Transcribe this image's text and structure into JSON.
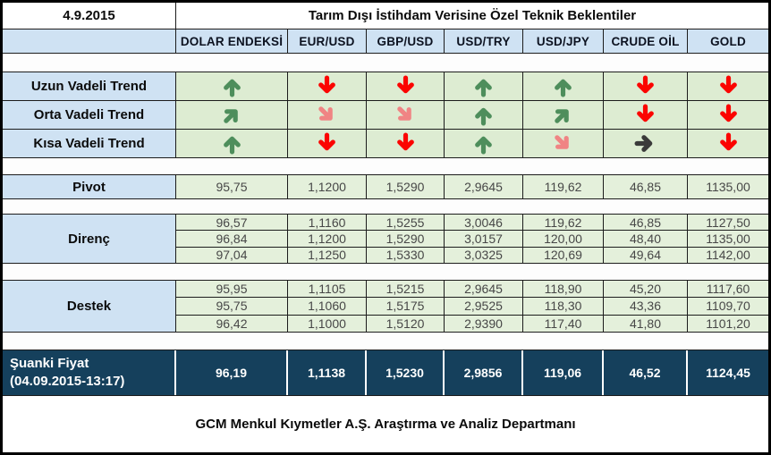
{
  "chart_data": {
    "type": "table",
    "date": "4.9.2015",
    "title": "Tarım Dışı İstihdam Verisine Özel Teknik Beklentiler",
    "footer": "GCM Menkul Kıymetler A.Ş. Araştırma ve Analiz Departmanı",
    "columns": [
      "DOLAR ENDEKSİ",
      "EUR/USD",
      "GBP/USD",
      "USD/TRY",
      "USD/JPY",
      "CRUDE OİL",
      "GOLD"
    ],
    "trend_rows": [
      {
        "label": "Uzun Vadeli Trend",
        "arrows": [
          {
            "dir": "up",
            "tone": "green"
          },
          {
            "dir": "down",
            "tone": "red"
          },
          {
            "dir": "down",
            "tone": "red"
          },
          {
            "dir": "up",
            "tone": "green"
          },
          {
            "dir": "up",
            "tone": "green"
          },
          {
            "dir": "down",
            "tone": "red"
          },
          {
            "dir": "down",
            "tone": "red"
          }
        ]
      },
      {
        "label": "Orta Vadeli Trend",
        "arrows": [
          {
            "dir": "up-right",
            "tone": "green"
          },
          {
            "dir": "down-right",
            "tone": "light-red"
          },
          {
            "dir": "down-right",
            "tone": "light-red"
          },
          {
            "dir": "up",
            "tone": "green"
          },
          {
            "dir": "up-right",
            "tone": "green"
          },
          {
            "dir": "down",
            "tone": "red"
          },
          {
            "dir": "down",
            "tone": "red"
          }
        ]
      },
      {
        "label": "Kısa Vadeli Trend",
        "arrows": [
          {
            "dir": "up",
            "tone": "green"
          },
          {
            "dir": "down",
            "tone": "red"
          },
          {
            "dir": "down",
            "tone": "red"
          },
          {
            "dir": "up",
            "tone": "green"
          },
          {
            "dir": "down-right",
            "tone": "light-red"
          },
          {
            "dir": "right",
            "tone": "dark"
          },
          {
            "dir": "down",
            "tone": "red"
          }
        ]
      }
    ],
    "pivot": {
      "label": "Pivot",
      "values": [
        "95,75",
        "1,1200",
        "1,5290",
        "2,9645",
        "119,62",
        "46,85",
        "1135,00"
      ]
    },
    "resistance": {
      "label": "Direnç",
      "rows": [
        [
          "96,57",
          "1,1160",
          "1,5255",
          "3,0046",
          "119,62",
          "46,85",
          "1127,50"
        ],
        [
          "96,84",
          "1,1200",
          "1,5290",
          "3,0157",
          "120,00",
          "48,40",
          "1135,00"
        ],
        [
          "97,04",
          "1,1250",
          "1,5330",
          "3,0325",
          "120,69",
          "49,64",
          "1142,00"
        ]
      ]
    },
    "support": {
      "label": "Destek",
      "rows": [
        [
          "95,95",
          "1,1105",
          "1,5215",
          "2,9645",
          "118,90",
          "45,20",
          "1117,60"
        ],
        [
          "95,75",
          "1,1060",
          "1,5175",
          "2,9525",
          "118,30",
          "43,36",
          "1109,70"
        ],
        [
          "96,42",
          "1,1000",
          "1,5120",
          "2,9390",
          "117,40",
          "41,80",
          "1101,20"
        ]
      ]
    },
    "current_price": {
      "label": "Şuanki Fiyat",
      "timestamp": "(04.09.2015-13:17)",
      "values": [
        "96,19",
        "1,1138",
        "1,5230",
        "2,9856",
        "119,06",
        "46,52",
        "1124,45"
      ]
    }
  },
  "colors": {
    "header_blue": "#cfe2f3",
    "cell_green": "#e4f0db",
    "arrow_cell_green": "#ddecd2",
    "current_row_navy": "#15405c",
    "arrow_green": "#4e8e5c",
    "arrow_red": "#fb0400",
    "arrow_light_red": "#f08484",
    "arrow_dark": "#3a3a3a"
  }
}
